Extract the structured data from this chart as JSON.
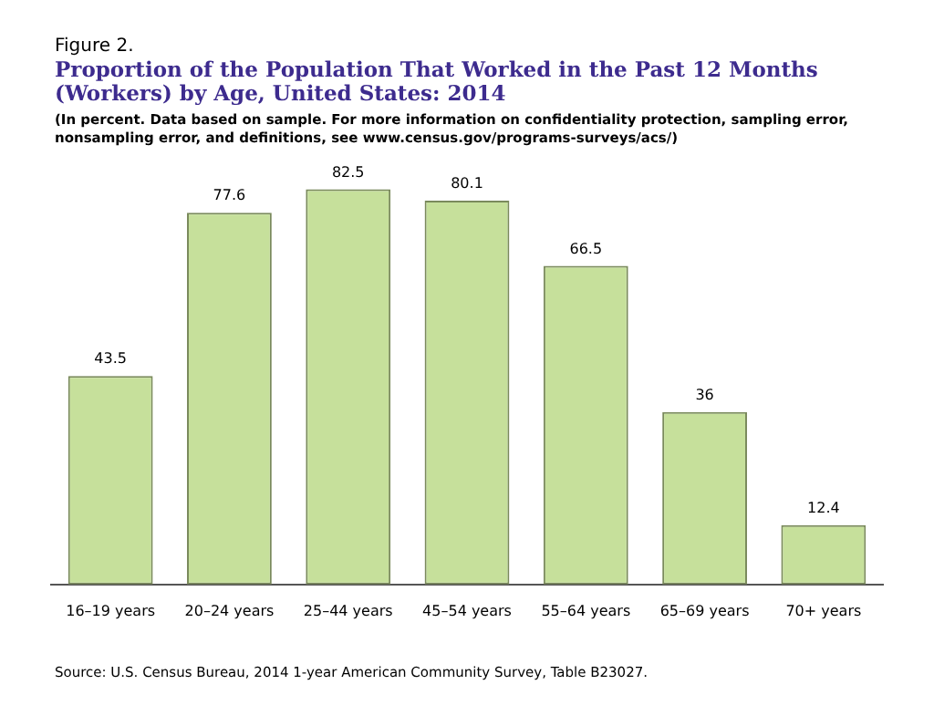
{
  "chart_data": {
    "type": "bar",
    "title": "Proportion of the Population That Worked in the Past 12 Months (Workers) by Age, United States: 2014",
    "subtitle": "(In percent. Data based on sample. For more information on confidentiality protection, sampling error, nonsampling error, and definitions, see www.census.gov/programs-surveys/acs/)",
    "annotations": [
      "Figure 2.",
      "Source: U.S. Census Bureau, 2014 1-year American Community Survey, Table B23027."
    ],
    "categories": [
      "16–19 years",
      "20–24 years",
      "25–44 years",
      "45–54 years",
      "55–64 years",
      "65–69 years",
      "70+ years"
    ],
    "values": [
      43.5,
      77.6,
      82.5,
      80.1,
      66.5,
      36,
      12.4
    ],
    "color": "#c6e09b",
    "data_labels": true,
    "grid": false,
    "legend": false
  }
}
